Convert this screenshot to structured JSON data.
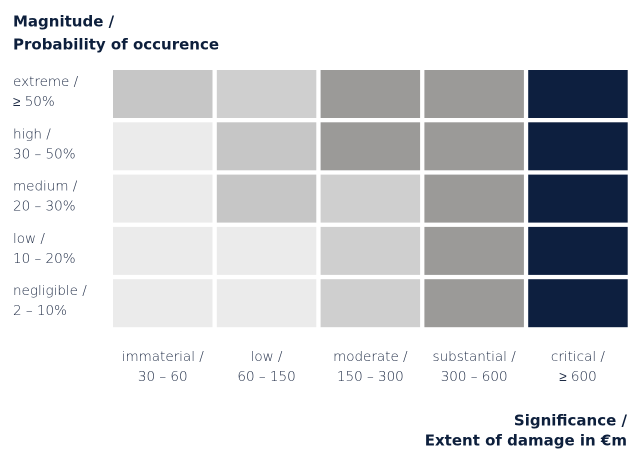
{
  "title": [
    "Magnitude /",
    "Probability of occurence"
  ],
  "x_axis_title": [
    "Significance /",
    "Extent of damage in €m"
  ],
  "rows": [
    {
      "lines": [
        "extreme /",
        "≥ 50%"
      ],
      "colors": [
        "#c6c6c6",
        "#cfcfcf",
        "#9b9a98",
        "#9b9a98",
        "#0d1f3f"
      ]
    },
    {
      "lines": [
        "high /",
        "30 – 50%"
      ],
      "colors": [
        "#ebebeb",
        "#c6c6c6",
        "#9b9a98",
        "#9b9a98",
        "#0d1f3f"
      ]
    },
    {
      "lines": [
        "medium /",
        "20 – 30%"
      ],
      "colors": [
        "#ebebeb",
        "#c6c6c6",
        "#cfcfcf",
        "#9b9a98",
        "#0d1f3f"
      ]
    },
    {
      "lines": [
        "low /",
        "10 – 20%"
      ],
      "colors": [
        "#ebebeb",
        "#ebebeb",
        "#cfcfcf",
        "#9b9a98",
        "#0d1f3f"
      ]
    },
    {
      "lines": [
        "negligible /",
        "2 – 10%"
      ],
      "colors": [
        "#ebebeb",
        "#ebebeb",
        "#cfcfcf",
        "#9b9a98",
        "#0d1f3f"
      ]
    }
  ],
  "columns": [
    {
      "lines": [
        "immaterial /",
        "30 – 60"
      ]
    },
    {
      "lines": [
        "low /",
        "60 – 150"
      ]
    },
    {
      "lines": [
        "moderate /",
        "150 – 300"
      ]
    },
    {
      "lines": [
        "substantial /",
        "300 – 600"
      ]
    },
    {
      "lines": [
        "critical /",
        "≥ 600"
      ]
    }
  ]
}
